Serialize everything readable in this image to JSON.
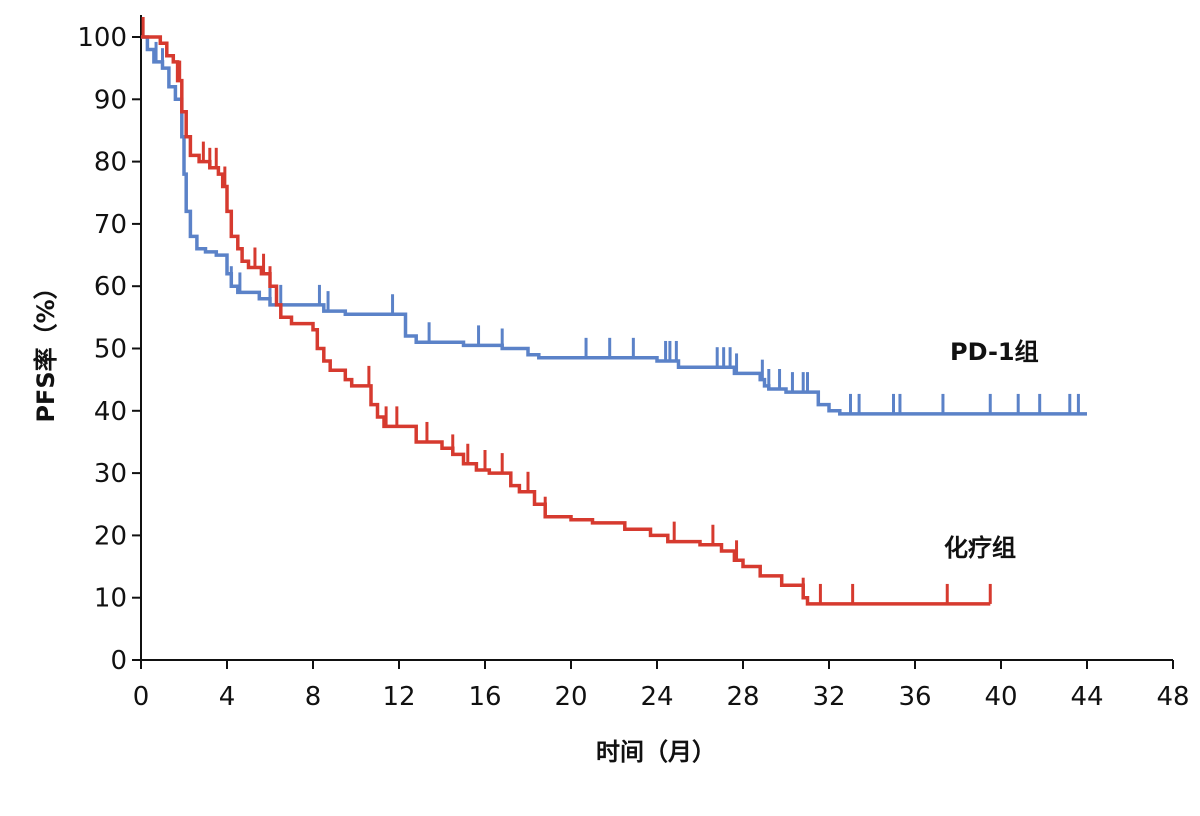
{
  "chart_data": {
    "type": "line",
    "title": "",
    "xlabel": "时间（月）",
    "ylabel": "PFS率（%）",
    "xlim": [
      0,
      48
    ],
    "ylim": [
      0,
      100
    ],
    "xticks": [
      0,
      4,
      8,
      12,
      16,
      20,
      24,
      28,
      32,
      36,
      40,
      44,
      48
    ],
    "yticks": [
      0,
      10,
      20,
      30,
      40,
      50,
      60,
      70,
      80,
      90,
      100
    ],
    "grid": false,
    "legend": "inline labels at right",
    "series": [
      {
        "name": "PD-1组",
        "color": "#5b82c8",
        "step": true,
        "points": [
          [
            0,
            100
          ],
          [
            0.3,
            98
          ],
          [
            0.6,
            96
          ],
          [
            1.0,
            95
          ],
          [
            1.3,
            92
          ],
          [
            1.6,
            90
          ],
          [
            1.9,
            84
          ],
          [
            2.0,
            78
          ],
          [
            2.1,
            72
          ],
          [
            2.3,
            68
          ],
          [
            2.6,
            66
          ],
          [
            3.0,
            65.5
          ],
          [
            3.5,
            65
          ],
          [
            4.0,
            62
          ],
          [
            4.2,
            60
          ],
          [
            4.5,
            59
          ],
          [
            5.5,
            58
          ],
          [
            6.0,
            57
          ],
          [
            8.5,
            56
          ],
          [
            9.5,
            55.5
          ],
          [
            12.3,
            52
          ],
          [
            12.8,
            51
          ],
          [
            15.0,
            50.5
          ],
          [
            16.8,
            50
          ],
          [
            18.0,
            49
          ],
          [
            18.5,
            48.5
          ],
          [
            24.0,
            48
          ],
          [
            25.0,
            47
          ],
          [
            27.0,
            47
          ],
          [
            27.6,
            46
          ],
          [
            28.0,
            46
          ],
          [
            28.8,
            45
          ],
          [
            29.0,
            44
          ],
          [
            29.2,
            43.5
          ],
          [
            30.0,
            43
          ],
          [
            31.5,
            41
          ],
          [
            32.0,
            40
          ],
          [
            32.5,
            39.5
          ],
          [
            44,
            39.5
          ]
        ],
        "censors": [
          0.7,
          1.0,
          4.0,
          4.2,
          4.6,
          6.0,
          6.5,
          8.3,
          8.7,
          11.7,
          13.4,
          15.7,
          16.8,
          20.7,
          21.8,
          22.9,
          24.4,
          24.6,
          24.9,
          26.8,
          27.1,
          27.4,
          27.7,
          28.9,
          29.2,
          29.7,
          30.3,
          30.8,
          31.0,
          33.0,
          33.4,
          35.0,
          35.3,
          37.3,
          39.5,
          40.8,
          41.8,
          43.2,
          43.6
        ]
      },
      {
        "name": "化疗组",
        "color": "#d63a2f",
        "step": true,
        "points": [
          [
            0,
            100
          ],
          [
            0.9,
            99
          ],
          [
            1.2,
            97
          ],
          [
            1.5,
            96
          ],
          [
            1.7,
            93
          ],
          [
            1.9,
            88
          ],
          [
            2.1,
            84
          ],
          [
            2.3,
            81
          ],
          [
            2.7,
            80
          ],
          [
            3.2,
            79
          ],
          [
            3.6,
            78
          ],
          [
            3.8,
            76
          ],
          [
            4.0,
            72
          ],
          [
            4.2,
            68
          ],
          [
            4.5,
            66
          ],
          [
            4.7,
            64
          ],
          [
            5.0,
            63
          ],
          [
            5.6,
            62
          ],
          [
            6.0,
            60
          ],
          [
            6.3,
            57
          ],
          [
            6.5,
            55
          ],
          [
            7.0,
            54
          ],
          [
            8.0,
            53
          ],
          [
            8.2,
            50
          ],
          [
            8.5,
            48
          ],
          [
            8.8,
            46.5
          ],
          [
            9.5,
            45
          ],
          [
            9.8,
            44
          ],
          [
            10.7,
            41
          ],
          [
            11.0,
            39
          ],
          [
            11.3,
            37.5
          ],
          [
            12.8,
            35
          ],
          [
            14.0,
            34
          ],
          [
            14.5,
            33
          ],
          [
            15.0,
            31.5
          ],
          [
            15.6,
            30.5
          ],
          [
            16.2,
            30
          ],
          [
            17.2,
            28
          ],
          [
            17.6,
            27
          ],
          [
            18.3,
            25
          ],
          [
            18.8,
            23
          ],
          [
            20.0,
            22.5
          ],
          [
            21.0,
            22
          ],
          [
            22.5,
            21
          ],
          [
            23.7,
            20
          ],
          [
            24.5,
            19
          ],
          [
            26.0,
            18.5
          ],
          [
            27.0,
            17.5
          ],
          [
            27.6,
            16
          ],
          [
            28.0,
            15
          ],
          [
            28.8,
            13.5
          ],
          [
            29.8,
            12
          ],
          [
            30.8,
            10
          ],
          [
            31.0,
            9
          ],
          [
            39.5,
            9
          ]
        ],
        "censors": [
          0.1,
          1.8,
          2.9,
          3.2,
          3.5,
          3.9,
          5.3,
          5.7,
          6.0,
          11.4,
          11.9,
          10.6,
          13.3,
          14.5,
          15.2,
          16.0,
          16.8,
          18.0,
          18.8,
          24.8,
          26.6,
          27.7,
          30.8,
          31.6,
          33.1,
          37.5,
          39.5
        ]
      }
    ]
  },
  "labels": {
    "pd1": "PD-1组",
    "chemo": "化疗组"
  }
}
